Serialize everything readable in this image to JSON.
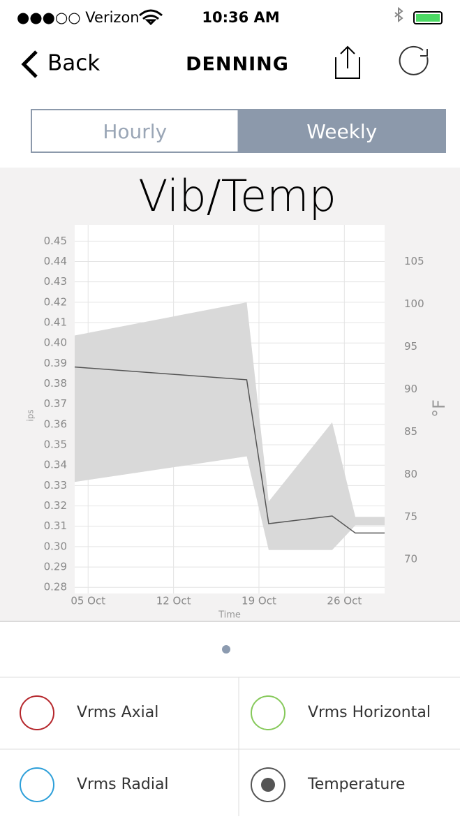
{
  "status_bar": {
    "carrier": "●●●○○ Verizon",
    "time": "10:36 AM"
  },
  "nav": {
    "back": "Back",
    "title": "DENNING"
  },
  "tabs": {
    "items": [
      "Hourly",
      "Weekly"
    ],
    "selected": 1
  },
  "chart_data": {
    "type": "line",
    "title": "Vib/Temp",
    "x_label": "Time",
    "y_label": "ips",
    "y2_label": "°F",
    "x": [
      3.9,
      18,
      19.8,
      25,
      26.9,
      29.3
    ],
    "xlim": [
      3.9,
      29.3
    ],
    "xticks": [
      {
        "value": 5,
        "label": "05 Oct"
      },
      {
        "value": 12,
        "label": "12 Oct"
      },
      {
        "value": 19,
        "label": "19 Oct"
      },
      {
        "value": 26,
        "label": "26 Oct"
      }
    ],
    "ylim": [
      0.277,
      0.458
    ],
    "yticks": [
      0.28,
      0.29,
      {
        "value": 0.3,
        "label": "0.30"
      },
      0.31,
      0.32,
      0.33,
      0.34,
      0.35,
      0.36,
      0.37,
      0.38,
      0.39,
      {
        "value": 0.4,
        "label": "0.40"
      },
      0.41,
      0.42,
      0.43,
      0.44,
      0.45
    ],
    "y2lim": [
      66,
      109.3
    ],
    "y2ticks": [
      70,
      75,
      80,
      85,
      90,
      95,
      100,
      105
    ],
    "grid": true,
    "series": [
      {
        "name": "Temperature",
        "axis": "y2",
        "color": "#555555",
        "band_color": "#d9d9d9",
        "values": [
          92.6,
          91.1,
          74.2,
          75.1,
          73.1,
          73.1
        ],
        "band_upper": [
          96.3,
          100.2,
          76.8,
          86.1,
          75.0,
          75.0
        ],
        "band_lower": [
          79.1,
          82.1,
          71.1,
          71.1,
          74.0,
          74.0
        ]
      }
    ]
  },
  "legend": [
    {
      "name": "Vrms Axial",
      "color": "#b5262b"
    },
    {
      "name": "Vrms Horizontal",
      "color": "#86c95a"
    },
    {
      "name": "Vrms Radial",
      "color": "#2d9fd9"
    },
    {
      "name": "Temperature",
      "color": "#555555"
    }
  ]
}
